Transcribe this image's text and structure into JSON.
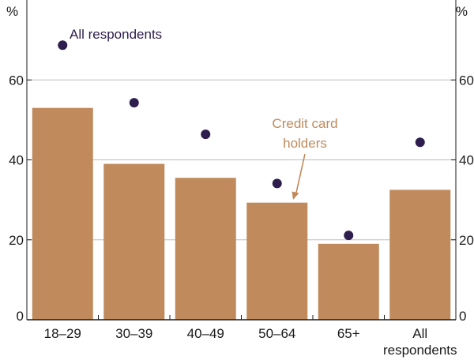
{
  "chart_data": {
    "type": "bar",
    "categories": [
      "18–29",
      "30–39",
      "40–49",
      "50–64",
      "65+",
      "All respondents"
    ],
    "category_lines": [
      [
        "18–29"
      ],
      [
        "30–39"
      ],
      [
        "40–49"
      ],
      [
        "50–64"
      ],
      [
        "65+"
      ],
      [
        "All",
        "respondents"
      ]
    ],
    "series": [
      {
        "name": "Credit card holders",
        "kind": "bar",
        "values": [
          53,
          39,
          35.5,
          29.3,
          19,
          32.5
        ]
      },
      {
        "name": "All respondents",
        "kind": "dot",
        "values": [
          68.7,
          54.3,
          46.4,
          34.1,
          21.1,
          44.4
        ]
      }
    ],
    "annotations": {
      "dots_label": "All respondents",
      "bars_label_lines": [
        "Credit card",
        "holders"
      ]
    },
    "y_unit": "%",
    "ylim": [
      0,
      80
    ],
    "yticks": [
      0,
      20,
      40,
      60
    ],
    "grid": true,
    "colors": {
      "bar": "#C08A5C",
      "dot": "#2E1E4E",
      "bar_label": "#C08A5C",
      "dot_label": "#2E1E4E",
      "grid": "#BDBDBD",
      "axis": "#1a1a1a"
    }
  }
}
